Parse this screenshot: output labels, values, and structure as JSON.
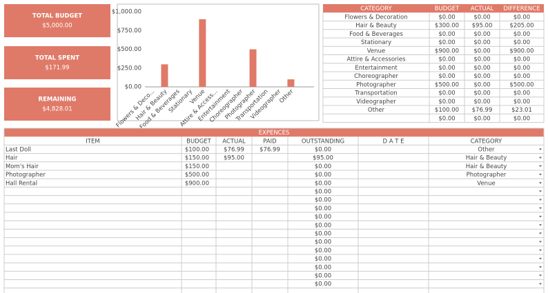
{
  "summary": [
    {
      "label": "TOTAL BUDGET",
      "value": "$5,000.00"
    },
    {
      "label": "TOTAL SPENT",
      "value": "$171.99"
    },
    {
      "label": "REMAINING",
      "value": "$4,828.01"
    }
  ],
  "chart_data": {
    "type": "bar",
    "categories": [
      "Flowers & Deco...",
      "Hair & Beauty",
      "Food & Beverages",
      "Stationary",
      "Venue",
      "Attire & Access...",
      "Entertainment",
      "Choreographer",
      "Photographer",
      "Transportation",
      "Videographer",
      "Other"
    ],
    "values": [
      0,
      300,
      0,
      0,
      900,
      0,
      0,
      0,
      500,
      0,
      0,
      100
    ],
    "color": "#e07a68",
    "ylim": [
      0,
      1000
    ],
    "yticks": [
      {
        "value": 0,
        "label": "$0.00"
      },
      {
        "value": 250,
        "label": "$250.00"
      },
      {
        "value": 500,
        "label": "$500.00"
      },
      {
        "value": 750,
        "label": "$750.00"
      },
      {
        "value": 1000,
        "label": "$1,000.00"
      }
    ],
    "grid": false
  },
  "category_table": {
    "columns": [
      "CATEGORY",
      "BUDGET",
      "ACTUAL",
      "DIFFERENCE"
    ],
    "rows": [
      [
        "Flowers & Decoration",
        "$0.00",
        "$0.00",
        "$0.00"
      ],
      [
        "Hair & Beauty",
        "$300.00",
        "$95.00",
        "$205.00"
      ],
      [
        "Food & Beverages",
        "$0.00",
        "$0.00",
        "$0.00"
      ],
      [
        "Stationary",
        "$0.00",
        "$0.00",
        "$0.00"
      ],
      [
        "Venue",
        "$900.00",
        "$0.00",
        "$900.00"
      ],
      [
        "Attire & Accessories",
        "$0.00",
        "$0.00",
        "$0.00"
      ],
      [
        "Entertainment",
        "$0.00",
        "$0.00",
        "$0.00"
      ],
      [
        "Choreographer",
        "$0.00",
        "$0.00",
        "$0.00"
      ],
      [
        "Photographer",
        "$500.00",
        "$0.00",
        "$500.00"
      ],
      [
        "Transportation",
        "$0.00",
        "$0.00",
        "$0.00"
      ],
      [
        "Videographer",
        "$0.00",
        "$0.00",
        "$0.00"
      ],
      [
        "Other",
        "$100.00",
        "$76.99",
        "$23.01"
      ],
      [
        null,
        "$0.00",
        "$0.00",
        "$0.00"
      ]
    ]
  },
  "expenses": {
    "title": "EXPENCES",
    "columns": [
      "ITEM",
      "BUDGET",
      "ACTUAL",
      "PAID",
      "OUTSTANDING",
      "D A T E",
      "CATEGORY"
    ],
    "rows": [
      [
        "Last Doll",
        "$100.00",
        "$76.99",
        "$76.99",
        "$0.00",
        null,
        "Other"
      ],
      [
        "Hair",
        "$150.00",
        "$95.00",
        null,
        "$95.00",
        null,
        "Hair & Beauty"
      ],
      [
        "Mom's Hair",
        "$150.00",
        null,
        null,
        "$0.00",
        null,
        "Hair & Beauty"
      ],
      [
        "Photographer",
        "$500.00",
        null,
        null,
        "$0.00",
        null,
        "Photographer"
      ],
      [
        "Hall Rental",
        "$900.00",
        null,
        null,
        "$0.00",
        null,
        "Venue"
      ],
      [
        null,
        null,
        null,
        null,
        "$0.00",
        null,
        null
      ],
      [
        null,
        null,
        null,
        null,
        "$0.00",
        null,
        null
      ],
      [
        null,
        null,
        null,
        null,
        "$0.00",
        null,
        null
      ],
      [
        null,
        null,
        null,
        null,
        "$0.00",
        null,
        null
      ],
      [
        null,
        null,
        null,
        null,
        "$0.00",
        null,
        null
      ],
      [
        null,
        null,
        null,
        null,
        "$0.00",
        null,
        null
      ],
      [
        null,
        null,
        null,
        null,
        "$0.00",
        null,
        null
      ],
      [
        null,
        null,
        null,
        null,
        "$0.00",
        null,
        null
      ],
      [
        null,
        null,
        null,
        null,
        "$0.00",
        null,
        null
      ],
      [
        null,
        null,
        null,
        null,
        "$0.00",
        null,
        null
      ],
      [
        null,
        null,
        null,
        null,
        "$0.00",
        null,
        null
      ],
      [
        null,
        null,
        null,
        null,
        "$0.00",
        null,
        null
      ]
    ]
  }
}
